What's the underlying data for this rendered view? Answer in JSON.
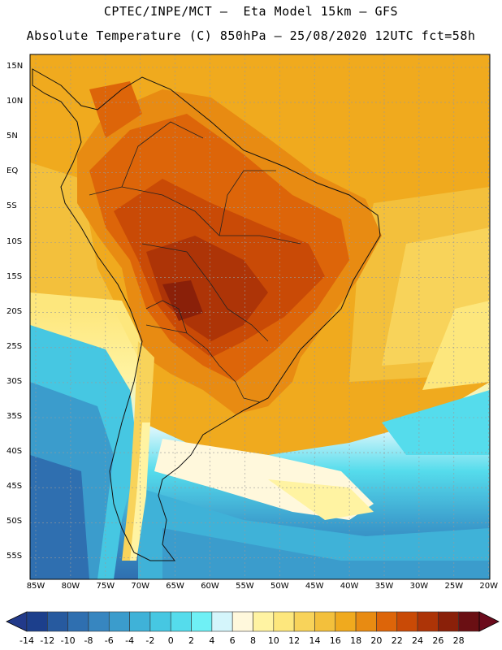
{
  "header": {
    "line1": "CPTEC/INPE/MCT —  Eta Model 15km — GFS",
    "line2": "Absolute Temperature (C) 850hPa — 25/08/2020 12UTC fct=58h"
  },
  "map": {
    "lat_ticks": [
      "15N",
      "10N",
      "5N",
      "EQ",
      "5S",
      "10S",
      "15S",
      "20S",
      "25S",
      "30S",
      "35S",
      "40S",
      "45S",
      "50S",
      "55S"
    ],
    "lon_ticks": [
      "85W",
      "80W",
      "75W",
      "70W",
      "65W",
      "60W",
      "55W",
      "50W",
      "45W",
      "40W",
      "35W",
      "30W",
      "25W",
      "20W"
    ],
    "region": "South America",
    "field": "temperature_850hPa"
  },
  "colorbar": {
    "labels": [
      "-14",
      "-12",
      "-10",
      "-8",
      "-6",
      "-4",
      "-2",
      "0",
      "2",
      "4",
      "6",
      "8",
      "10",
      "12",
      "14",
      "16",
      "18",
      "20",
      "22",
      "24",
      "26",
      "28"
    ],
    "colors": [
      "#1c3f8c",
      "#275a9f",
      "#2f6fb0",
      "#3786c0",
      "#3b9ccc",
      "#3fb2d8",
      "#46c7e2",
      "#55dcec",
      "#6ff0f5",
      "#d4f5fb",
      "#fff8dc",
      "#fff3a2",
      "#fde77d",
      "#f8d35a",
      "#f3c03c",
      "#f0aa1e",
      "#e88b12",
      "#dd6509",
      "#c94a06",
      "#ad3407",
      "#8a2009",
      "#6a0f13"
    ],
    "under_color": "#223a8a",
    "over_color": "#6b0b1c"
  }
}
